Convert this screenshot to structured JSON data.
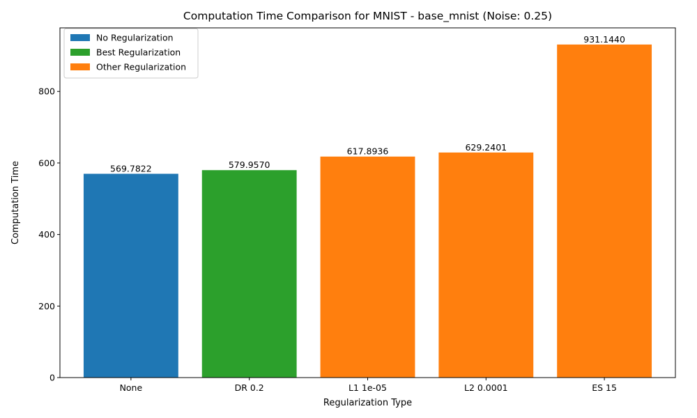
{
  "chart_data": {
    "type": "bar",
    "title": "Computation Time Comparison for MNIST - base_mnist (Noise: 0.25)",
    "xlabel": "Regularization Type",
    "ylabel": "Computation Time",
    "categories": [
      "None",
      "DR 0.2",
      "L1 1e-05",
      "L2 0.0001",
      "ES 15"
    ],
    "values": [
      569.7822,
      579.957,
      617.8936,
      629.2401,
      931.144
    ],
    "value_labels": [
      "569.7822",
      "579.9570",
      "617.8936",
      "629.2401",
      "931.1440"
    ],
    "bar_groups": [
      "No Regularization",
      "Best Regularization",
      "Other Regularization",
      "Other Regularization",
      "Other Regularization"
    ],
    "ylim": [
      0,
      977.7
    ],
    "yticks": [
      0,
      200,
      400,
      600,
      800
    ],
    "grid": false,
    "legend": {
      "placement": "top-left",
      "entries": [
        {
          "label": "No Regularization",
          "color": "#1f77b4"
        },
        {
          "label": "Best Regularization",
          "color": "#2ca02c"
        },
        {
          "label": "Other Regularization",
          "color": "#ff7f0e"
        }
      ]
    }
  }
}
